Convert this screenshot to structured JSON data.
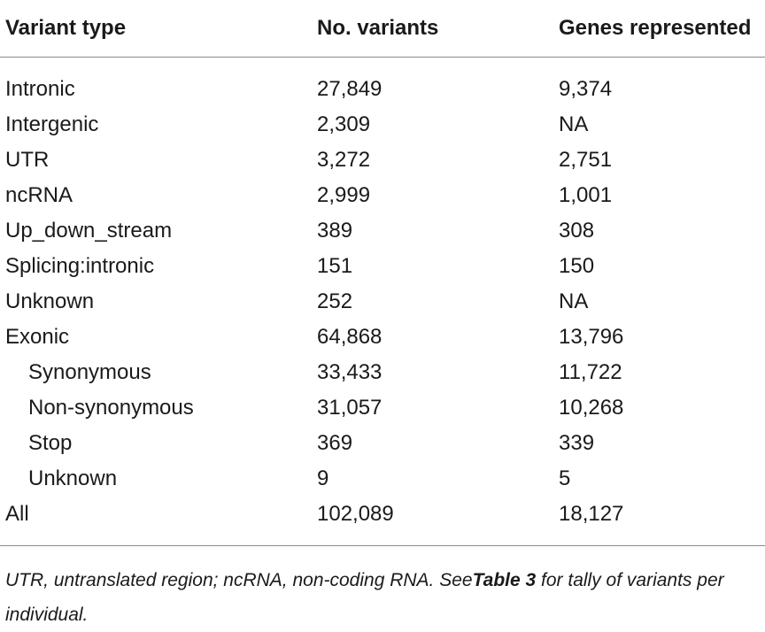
{
  "table": {
    "headers": [
      "Variant type",
      "No. variants",
      "Genes represented"
    ],
    "rows": [
      {
        "type": "Intronic",
        "variants": "27,849",
        "genes": "9,374",
        "indent": false
      },
      {
        "type": "Intergenic",
        "variants": "2,309",
        "genes": "NA",
        "indent": false
      },
      {
        "type": "UTR",
        "variants": "3,272",
        "genes": "2,751",
        "indent": false
      },
      {
        "type": "ncRNA",
        "variants": "2,999",
        "genes": "1,001",
        "indent": false
      },
      {
        "type": "Up_down_stream",
        "variants": "389",
        "genes": "308",
        "indent": false
      },
      {
        "type": "Splicing:intronic",
        "variants": "151",
        "genes": "150",
        "indent": false
      },
      {
        "type": "Unknown",
        "variants": "252",
        "genes": "NA",
        "indent": false
      },
      {
        "type": "Exonic",
        "variants": "64,868",
        "genes": "13,796",
        "indent": false
      },
      {
        "type": "Synonymous",
        "variants": "33,433",
        "genes": "11,722",
        "indent": true
      },
      {
        "type": "Non-synonymous",
        "variants": "31,057",
        "genes": "10,268",
        "indent": true
      },
      {
        "type": "Stop",
        "variants": "369",
        "genes": "339",
        "indent": true
      },
      {
        "type": "Unknown",
        "variants": "9",
        "genes": "5",
        "indent": true
      },
      {
        "type": "All",
        "variants": "102,089",
        "genes": "18,127",
        "indent": false
      }
    ]
  },
  "footnote": {
    "prefix": "UTR, untranslated region; ncRNA, non-coding RNA. See",
    "reference": "Table 3",
    "suffix": " for tally of variants per individual."
  }
}
